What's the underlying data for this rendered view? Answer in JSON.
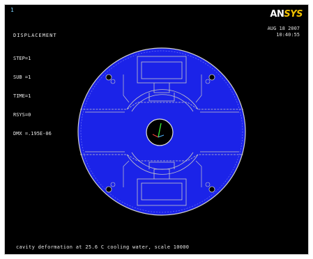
{
  "window_number": "1",
  "info": {
    "title": "DISPLACEMENT",
    "lines": [
      "STEP=1",
      "SUB =1",
      "TIME=1",
      "RSYS=0",
      "DMX =.195E-06"
    ]
  },
  "logo": {
    "part1": "AN",
    "part2": "SYS"
  },
  "date": "AUG 18 2007",
  "time": "10:40:55",
  "caption": "cavity deformation at 25.6 C cooling water, scale 10000",
  "colors": {
    "background": "#000000",
    "model_fill": "#1b23e8",
    "outline": "#c8c8c8",
    "logo_accent": "#f0c000",
    "triad": "#39e639"
  }
}
